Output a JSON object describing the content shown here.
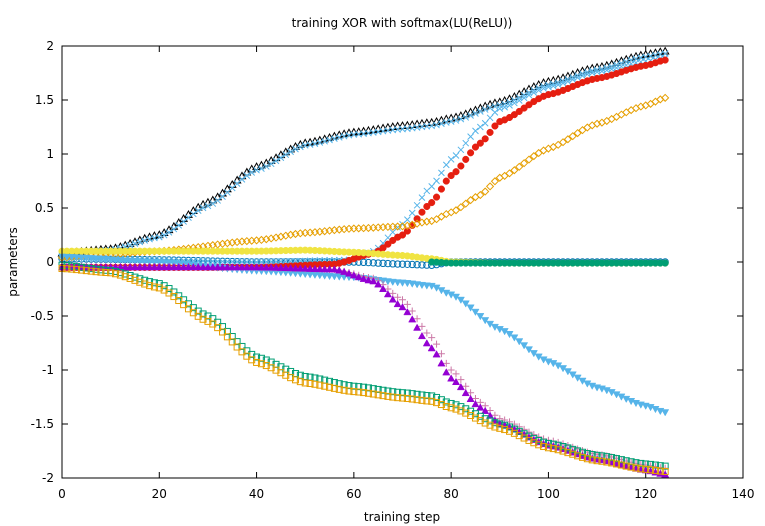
{
  "chart_data": {
    "type": "scatter",
    "title": "training XOR with softmax(LU(ReLU))",
    "xlabel": "training step",
    "ylabel": "parameters",
    "xlim": [
      0,
      140
    ],
    "ylim": [
      -2,
      2
    ],
    "xticks": [
      "0",
      "20",
      "40",
      "60",
      "80",
      "100",
      "120",
      "140"
    ],
    "yticks": [
      "2",
      "1.5",
      "1",
      "0.5",
      "0",
      "-0.5",
      "-1",
      "-1.5",
      "-2"
    ],
    "grid": false,
    "legend": "none",
    "steps": 124,
    "series": [
      {
        "color": "#000000",
        "marker": "triangle-open",
        "points": [
          [
            0,
            0.08
          ],
          [
            10,
            0.12
          ],
          [
            20,
            0.25
          ],
          [
            30,
            0.55
          ],
          [
            40,
            0.88
          ],
          [
            50,
            1.1
          ],
          [
            60,
            1.2
          ],
          [
            70,
            1.26
          ],
          [
            76,
            1.29
          ],
          [
            80,
            1.33
          ],
          [
            90,
            1.48
          ],
          [
            100,
            1.67
          ],
          [
            110,
            1.8
          ],
          [
            120,
            1.92
          ],
          [
            124,
            1.95
          ]
        ]
      },
      {
        "color": "#56b4e9",
        "marker": "x",
        "points": [
          [
            0,
            0.06
          ],
          [
            10,
            0.11
          ],
          [
            20,
            0.23
          ],
          [
            30,
            0.52
          ],
          [
            40,
            0.85
          ],
          [
            50,
            1.08
          ],
          [
            60,
            1.18
          ],
          [
            70,
            1.23
          ],
          [
            76,
            1.26
          ],
          [
            80,
            1.3
          ],
          [
            90,
            1.45
          ],
          [
            100,
            1.64
          ],
          [
            110,
            1.78
          ],
          [
            120,
            1.9
          ],
          [
            124,
            1.93
          ]
        ]
      },
      {
        "color": "#0072b2",
        "marker": "circle-open",
        "points": [
          [
            0,
            0.03
          ],
          [
            20,
            0.02
          ],
          [
            40,
            0.0
          ],
          [
            60,
            0.0
          ],
          [
            70,
            -0.02
          ],
          [
            76,
            -0.03
          ],
          [
            80,
            0.0
          ],
          [
            100,
            0.0
          ],
          [
            124,
            0.0
          ]
        ]
      },
      {
        "color": "#56b4e9",
        "marker": "x",
        "points": [
          [
            0,
            0.04
          ],
          [
            40,
            0.0
          ],
          [
            60,
            0.02
          ],
          [
            64,
            0.1
          ],
          [
            70,
            0.35
          ],
          [
            76,
            0.7
          ],
          [
            80,
            0.95
          ],
          [
            86,
            1.25
          ],
          [
            90,
            1.42
          ],
          [
            100,
            1.62
          ],
          [
            110,
            1.76
          ],
          [
            120,
            1.86
          ],
          [
            124,
            1.89
          ]
        ]
      },
      {
        "color": "#e51e10",
        "marker": "circle-filled",
        "points": [
          [
            0,
            -0.05
          ],
          [
            20,
            -0.05
          ],
          [
            40,
            -0.05
          ],
          [
            56,
            -0.02
          ],
          [
            64,
            0.08
          ],
          [
            70,
            0.25
          ],
          [
            76,
            0.55
          ],
          [
            80,
            0.8
          ],
          [
            86,
            1.1
          ],
          [
            90,
            1.3
          ],
          [
            100,
            1.55
          ],
          [
            110,
            1.7
          ],
          [
            120,
            1.82
          ],
          [
            124,
            1.87
          ]
        ]
      },
      {
        "color": "#e69f00",
        "marker": "diamond-open",
        "points": [
          [
            0,
            0.04
          ],
          [
            20,
            0.1
          ],
          [
            40,
            0.2
          ],
          [
            50,
            0.27
          ],
          [
            60,
            0.31
          ],
          [
            70,
            0.33
          ],
          [
            76,
            0.38
          ],
          [
            80,
            0.46
          ],
          [
            86,
            0.62
          ],
          [
            90,
            0.78
          ],
          [
            100,
            1.05
          ],
          [
            110,
            1.28
          ],
          [
            120,
            1.45
          ],
          [
            124,
            1.52
          ]
        ]
      },
      {
        "color": "#f0e442",
        "marker": "circle-filled",
        "points": [
          [
            0,
            0.1
          ],
          [
            20,
            0.1
          ],
          [
            40,
            0.1
          ],
          [
            50,
            0.11
          ],
          [
            60,
            0.09
          ],
          [
            70,
            0.06
          ],
          [
            76,
            0.03
          ],
          [
            80,
            0.0
          ],
          [
            90,
            -0.01
          ],
          [
            100,
            -0.01
          ],
          [
            124,
            -0.01
          ]
        ]
      },
      {
        "color": "#009e73",
        "marker": "circle-filled",
        "points": [
          [
            76,
            0.0
          ],
          [
            80,
            -0.01
          ],
          [
            90,
            -0.01
          ],
          [
            100,
            -0.01
          ],
          [
            124,
            -0.01
          ]
        ]
      },
      {
        "color": "#56b4e9",
        "marker": "triangle-down-filled",
        "points": [
          [
            0,
            0.05
          ],
          [
            20,
            0.0
          ],
          [
            40,
            -0.08
          ],
          [
            60,
            -0.14
          ],
          [
            70,
            -0.19
          ],
          [
            76,
            -0.22
          ],
          [
            80,
            -0.3
          ],
          [
            90,
            -0.62
          ],
          [
            100,
            -0.92
          ],
          [
            110,
            -1.16
          ],
          [
            120,
            -1.33
          ],
          [
            124,
            -1.39
          ]
        ]
      },
      {
        "color": "#cc79a7",
        "marker": "plus",
        "points": [
          [
            0,
            -0.04
          ],
          [
            20,
            -0.04
          ],
          [
            40,
            -0.05
          ],
          [
            56,
            -0.07
          ],
          [
            64,
            -0.15
          ],
          [
            70,
            -0.35
          ],
          [
            76,
            -0.7
          ],
          [
            80,
            -1.0
          ],
          [
            86,
            -1.3
          ],
          [
            90,
            -1.45
          ],
          [
            100,
            -1.65
          ],
          [
            110,
            -1.78
          ],
          [
            120,
            -1.88
          ],
          [
            124,
            -1.91
          ]
        ]
      },
      {
        "color": "#9400d3",
        "marker": "triangle-filled",
        "points": [
          [
            0,
            -0.05
          ],
          [
            20,
            -0.05
          ],
          [
            40,
            -0.05
          ],
          [
            56,
            -0.07
          ],
          [
            64,
            -0.18
          ],
          [
            70,
            -0.42
          ],
          [
            76,
            -0.8
          ],
          [
            80,
            -1.08
          ],
          [
            86,
            -1.35
          ],
          [
            90,
            -1.5
          ],
          [
            100,
            -1.7
          ],
          [
            110,
            -1.83
          ],
          [
            120,
            -1.93
          ],
          [
            124,
            -1.97
          ]
        ]
      },
      {
        "color": "#009e73",
        "marker": "square-open",
        "points": [
          [
            0,
            -0.03
          ],
          [
            10,
            -0.08
          ],
          [
            20,
            -0.2
          ],
          [
            30,
            -0.5
          ],
          [
            40,
            -0.88
          ],
          [
            50,
            -1.06
          ],
          [
            60,
            -1.15
          ],
          [
            70,
            -1.21
          ],
          [
            76,
            -1.24
          ],
          [
            80,
            -1.31
          ],
          [
            90,
            -1.5
          ],
          [
            100,
            -1.68
          ],
          [
            110,
            -1.79
          ],
          [
            120,
            -1.87
          ],
          [
            124,
            -1.89
          ]
        ]
      },
      {
        "color": "#e69f00",
        "marker": "square-open",
        "points": [
          [
            0,
            -0.06
          ],
          [
            10,
            -0.1
          ],
          [
            20,
            -0.24
          ],
          [
            30,
            -0.55
          ],
          [
            40,
            -0.93
          ],
          [
            50,
            -1.12
          ],
          [
            60,
            -1.2
          ],
          [
            70,
            -1.26
          ],
          [
            76,
            -1.29
          ],
          [
            80,
            -1.35
          ],
          [
            90,
            -1.54
          ],
          [
            100,
            -1.72
          ],
          [
            110,
            -1.84
          ],
          [
            120,
            -1.92
          ],
          [
            124,
            -1.94
          ]
        ]
      }
    ]
  }
}
